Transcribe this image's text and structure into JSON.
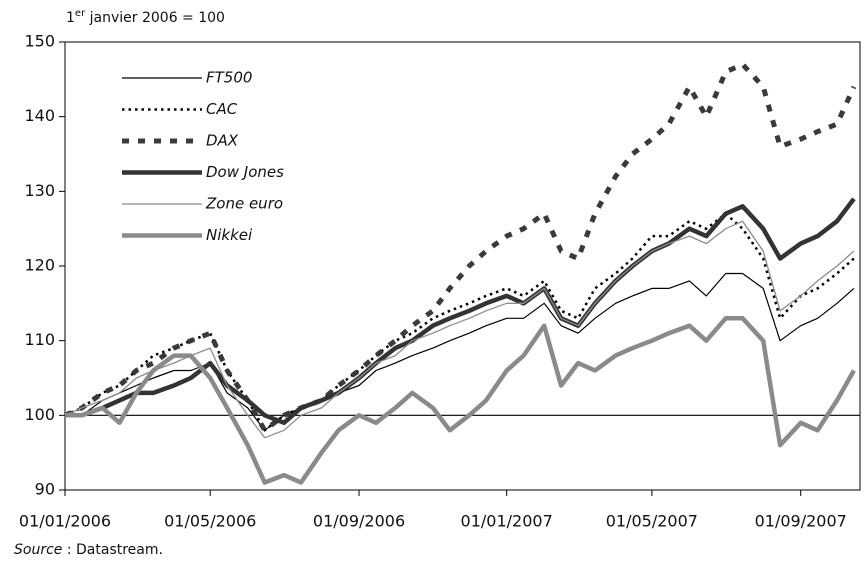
{
  "chart_data": {
    "type": "line",
    "y_label": {
      "pre": "1",
      "sup": "er",
      "post": " janvier 2006 = 100"
    },
    "source": {
      "label": "Source",
      "text": " : Datastream."
    },
    "x": [
      "01/01/2006",
      "15/01/2006",
      "01/02/2006",
      "15/02/2006",
      "01/03/2006",
      "15/03/2006",
      "01/04/2006",
      "15/04/2006",
      "01/05/2006",
      "15/05/2006",
      "01/06/2006",
      "15/06/2006",
      "01/07/2006",
      "15/07/2006",
      "01/08/2006",
      "15/08/2006",
      "01/09/2006",
      "15/09/2006",
      "01/10/2006",
      "15/10/2006",
      "01/11/2006",
      "15/11/2006",
      "01/12/2006",
      "15/12/2006",
      "01/01/2007",
      "15/01/2007",
      "01/02/2007",
      "15/02/2007",
      "01/03/2007",
      "15/03/2007",
      "01/04/2007",
      "15/04/2007",
      "01/05/2007",
      "15/05/2007",
      "01/06/2007",
      "15/06/2007",
      "01/07/2007",
      "15/07/2007",
      "01/08/2007",
      "15/08/2007",
      "01/09/2007",
      "15/09/2007",
      "01/10/2007",
      "15/10/2007"
    ],
    "series": [
      {
        "name": "FT500",
        "color": "#000000",
        "width": 1.2,
        "dash": "solid",
        "values": [
          100,
          100,
          102,
          103,
          104,
          105,
          106,
          106,
          107,
          103,
          101,
          98,
          100,
          101,
          102,
          103,
          104,
          106,
          107,
          108,
          109,
          110,
          111,
          112,
          113,
          113,
          115,
          112,
          111,
          113,
          115,
          116,
          117,
          117,
          118,
          116,
          119,
          119,
          117,
          110,
          112,
          113,
          115,
          117
        ]
      },
      {
        "name": "CAC",
        "color": "#000000",
        "width": 2.5,
        "dash": "dotted",
        "values": [
          100,
          101,
          103,
          104,
          106,
          108,
          109,
          110,
          111,
          106,
          102,
          98,
          100,
          101,
          102,
          104,
          106,
          108,
          110,
          111,
          113,
          114,
          115,
          116,
          117,
          116,
          118,
          114,
          113,
          117,
          119,
          121,
          124,
          124,
          126,
          125,
          127,
          125,
          121,
          113,
          116,
          117,
          119,
          121
        ]
      },
      {
        "name": "DAX",
        "color": "#3a3a3a",
        "width": 5,
        "dash": "dashed",
        "values": [
          100,
          101,
          103,
          104,
          106,
          107,
          109,
          110,
          111,
          106,
          102,
          98,
          100,
          101,
          102,
          104,
          106,
          108,
          110,
          112,
          114,
          117,
          120,
          122,
          124,
          125,
          127,
          122,
          121,
          127,
          132,
          135,
          137,
          139,
          144,
          140,
          146,
          147,
          144,
          136,
          137,
          138,
          139,
          144
        ]
      },
      {
        "name": "Dow Jones",
        "color": "#333333",
        "width": 4.5,
        "dash": "solid",
        "values": [
          100,
          100,
          101,
          102,
          103,
          103,
          104,
          105,
          107,
          104,
          102,
          100,
          99,
          101,
          102,
          103,
          105,
          107,
          109,
          110,
          112,
          113,
          114,
          115,
          116,
          115,
          117,
          113,
          112,
          115,
          118,
          120,
          122,
          123,
          125,
          124,
          127,
          128,
          125,
          121,
          123,
          124,
          126,
          129
        ]
      },
      {
        "name": "Zone euro",
        "color": "#8c8c8c",
        "width": 1.3,
        "dash": "solid",
        "values": [
          100,
          101,
          102,
          103,
          105,
          106,
          107,
          108,
          109,
          104,
          100,
          97,
          98,
          100,
          101,
          103,
          105,
          107,
          108,
          110,
          111,
          112,
          113,
          114,
          115,
          115,
          117,
          113,
          112,
          115,
          118,
          120,
          122,
          123,
          124,
          123,
          125,
          126,
          122,
          114,
          116,
          118,
          120,
          122
        ]
      },
      {
        "name": "Nikkei",
        "color": "#8a8a8a",
        "width": 4.5,
        "dash": "solid",
        "values": [
          100,
          100,
          101,
          99,
          103,
          106,
          108,
          108,
          105,
          101,
          96,
          91,
          92,
          91,
          95,
          98,
          100,
          99,
          101,
          103,
          101,
          98,
          100,
          102,
          106,
          108,
          112,
          104,
          107,
          106,
          108,
          109,
          110,
          111,
          112,
          110,
          113,
          113,
          110,
          96,
          99,
          98,
          102,
          106
        ]
      }
    ],
    "xlim": [
      "01/01/2006",
      "20/10/2007"
    ],
    "xticks": [
      "01/01/2006",
      "01/05/2006",
      "01/09/2006",
      "01/01/2007",
      "01/05/2007",
      "01/09/2007"
    ],
    "ylim": [
      90,
      150
    ],
    "yticks": [
      90,
      100,
      110,
      120,
      130,
      140,
      150
    ],
    "reference_line": 100,
    "legend": "upper left"
  }
}
